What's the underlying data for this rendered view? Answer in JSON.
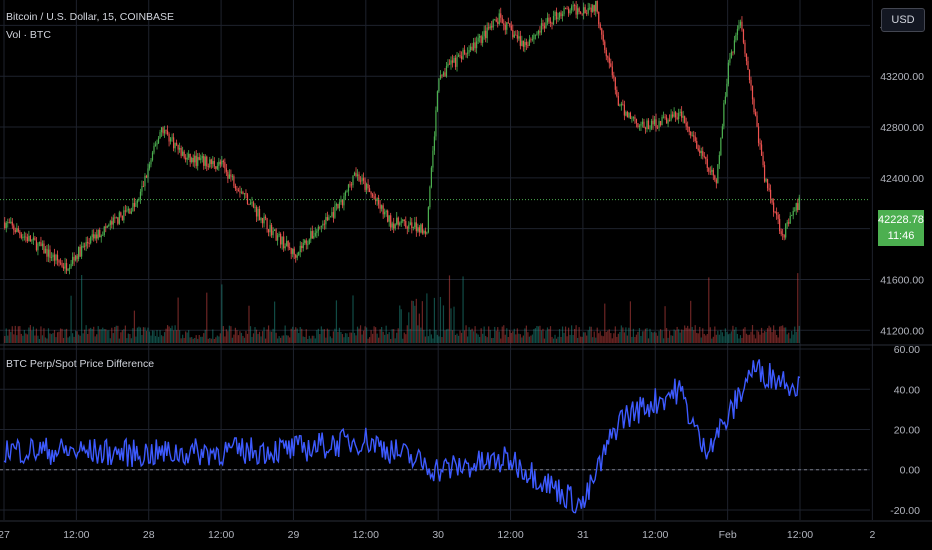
{
  "header": {
    "title": "Bitcoin / U.S. Dollar, 15, COINBASE",
    "volume_label": "Vol · BTC",
    "indicator_title": "BTC Perp/Spot Price Difference",
    "currency_button": "USD"
  },
  "last_price": {
    "value": "42228.78",
    "countdown": "11:46"
  },
  "colors": {
    "background": "#000000",
    "up": "#26a69a",
    "up_body": "#4caf50",
    "down": "#ef5350",
    "indicator": "#3d5afe",
    "badge": "#4caf50",
    "grid": "#1e222d",
    "axis_text": "#b2b5be"
  },
  "chart_data": [
    {
      "type": "candlestick",
      "title": "Bitcoin / U.S. Dollar, 15, COINBASE",
      "y_axis_ticks": [
        41200,
        41600,
        42000,
        42400,
        42800,
        43200,
        43600
      ],
      "y_axis_tick_labels": [
        "41200.00",
        "41600.00",
        "42000.00",
        "42400.00",
        "42800.00",
        "43200.00",
        "43600.00"
      ],
      "ylim": [
        41100,
        43800
      ],
      "x_tick_labels": [
        "27",
        "12:00",
        "28",
        "12:00",
        "29",
        "12:00",
        "30",
        "12:00",
        "31",
        "12:00",
        "Feb",
        "12:00",
        "2"
      ],
      "price_path_keypoints": [
        {
          "t": "27 00:00",
          "price": 42050
        },
        {
          "t": "27 06:00",
          "price": 41850
        },
        {
          "t": "27 10:00",
          "price": 41700
        },
        {
          "t": "27 14:00",
          "price": 41900
        },
        {
          "t": "27 22:00",
          "price": 42200
        },
        {
          "t": "28 02:00",
          "price": 42800
        },
        {
          "t": "28 06:00",
          "price": 42550
        },
        {
          "t": "28 12:00",
          "price": 42500
        },
        {
          "t": "28 20:00",
          "price": 42000
        },
        {
          "t": "29 00:00",
          "price": 41800
        },
        {
          "t": "29 08:00",
          "price": 42200
        },
        {
          "t": "29 10:00",
          "price": 42450
        },
        {
          "t": "29 16:00",
          "price": 42050
        },
        {
          "t": "29 22:00",
          "price": 42000
        },
        {
          "t": "30 00:00",
          "price": 43200
        },
        {
          "t": "30 06:00",
          "price": 43450
        },
        {
          "t": "30 10:00",
          "price": 43650
        },
        {
          "t": "30 14:00",
          "price": 43450
        },
        {
          "t": "30 20:00",
          "price": 43700
        },
        {
          "t": "31 02:00",
          "price": 43750
        },
        {
          "t": "31 06:00",
          "price": 42950
        },
        {
          "t": "31 10:00",
          "price": 42800
        },
        {
          "t": "31 16:00",
          "price": 42900
        },
        {
          "t": "31 22:00",
          "price": 42350
        },
        {
          "t": "Feb 01 00:00",
          "price": 43300
        },
        {
          "t": "Feb 01 02:00",
          "price": 43650
        },
        {
          "t": "Feb 01 06:00",
          "price": 42400
        },
        {
          "t": "Feb 01 09:00",
          "price": 41950
        },
        {
          "t": "Feb 01 12:00",
          "price": 42228.78
        }
      ],
      "last_price": 42228.78
    },
    {
      "type": "line",
      "title": "BTC Perp/Spot Price Difference",
      "y_axis_ticks": [
        -20,
        0,
        20,
        40,
        60
      ],
      "y_axis_tick_labels": [
        "-20.00",
        "0.00",
        "20.00",
        "40.00",
        "60.00"
      ],
      "ylim": [
        -25,
        62
      ],
      "reference_line": 0,
      "series_keypoints": [
        {
          "t": "27 00:00",
          "value": 10
        },
        {
          "t": "28 00:00",
          "value": 8
        },
        {
          "t": "29 00:00",
          "value": 10
        },
        {
          "t": "29 12:00",
          "value": 15
        },
        {
          "t": "30 00:00",
          "value": 0
        },
        {
          "t": "30 12:00",
          "value": 5
        },
        {
          "t": "31 00:00",
          "value": -18
        },
        {
          "t": "31 06:00",
          "value": 25
        },
        {
          "t": "31 16:00",
          "value": 40
        },
        {
          "t": "31 20:00",
          "value": 10
        },
        {
          "t": "Feb 01 00:00",
          "value": 25
        },
        {
          "t": "Feb 01 04:00",
          "value": 50
        },
        {
          "t": "Feb 01 12:00",
          "value": 42
        }
      ]
    }
  ]
}
